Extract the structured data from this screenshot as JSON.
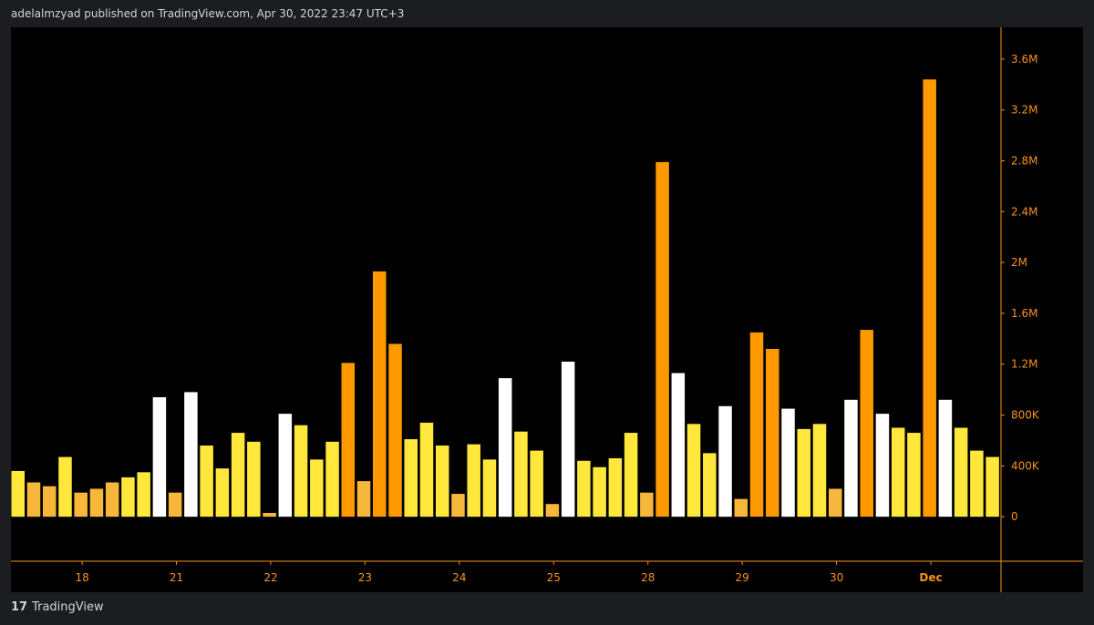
{
  "header": {
    "publish_line": "adelalmzyad published on TradingView.com, Apr 30, 2022 23:47 UTC+3"
  },
  "footer": {
    "logo_glyph": "17",
    "brand": "TradingView"
  },
  "colors": {
    "background": "#000000",
    "axis": "#f7931a",
    "tick_text": "#f7931a",
    "white_bar": "#ffffff",
    "yellow_bar": "#ffe83b",
    "gold_bar": "#f7b73a",
    "orange_bar": "#ff9900"
  },
  "chart_data": {
    "type": "bar",
    "title": "",
    "xlabel": "",
    "ylabel": "",
    "ylim": [
      -350000,
      3850000
    ],
    "y_ticks": [
      0,
      400000,
      800000,
      1200000,
      1600000,
      2000000,
      2400000,
      2800000,
      3200000,
      3600000
    ],
    "y_tick_labels": [
      "0",
      "400K",
      "800K",
      "1.2M",
      "1.6M",
      "2M",
      "2.4M",
      "2.8M",
      "3.2M",
      "3.6M"
    ],
    "x_tick_labels": [
      {
        "label": "18",
        "bar_index": 4.5
      },
      {
        "label": "21",
        "bar_index": 10.5
      },
      {
        "label": "22",
        "bar_index": 16.5
      },
      {
        "label": "23",
        "bar_index": 22.5
      },
      {
        "label": "24",
        "bar_index": 28.5
      },
      {
        "label": "25",
        "bar_index": 34.5
      },
      {
        "label": "28",
        "bar_index": 40.5
      },
      {
        "label": "29",
        "bar_index": 46.5
      },
      {
        "label": "30",
        "bar_index": 52.5
      },
      {
        "label": "Dec",
        "bar_index": 58.5,
        "bold": true
      }
    ],
    "values": [
      360000,
      270000,
      240000,
      470000,
      190000,
      220000,
      270000,
      310000,
      350000,
      940000,
      190000,
      980000,
      560000,
      380000,
      660000,
      590000,
      30000,
      810000,
      720000,
      450000,
      590000,
      1210000,
      280000,
      1930000,
      1360000,
      610000,
      740000,
      560000,
      180000,
      570000,
      450000,
      1090000,
      670000,
      520000,
      100000,
      1220000,
      440000,
      390000,
      460000,
      660000,
      190000,
      2790000,
      1130000,
      730000,
      500000,
      870000,
      140000,
      1450000,
      1320000,
      850000,
      690000,
      730000,
      220000,
      920000,
      1470000,
      810000,
      700000,
      660000,
      3440000,
      920000,
      700000,
      520000,
      470000
    ],
    "bar_colors": [
      "yellow",
      "gold",
      "gold",
      "yellow",
      "gold",
      "gold",
      "gold",
      "yellow",
      "yellow",
      "white",
      "gold",
      "white",
      "yellow",
      "yellow",
      "yellow",
      "yellow",
      "gold",
      "white",
      "yellow",
      "yellow",
      "yellow",
      "orange",
      "gold",
      "orange",
      "orange",
      "yellow",
      "yellow",
      "yellow",
      "gold",
      "yellow",
      "yellow",
      "white",
      "yellow",
      "yellow",
      "gold",
      "white",
      "yellow",
      "yellow",
      "yellow",
      "yellow",
      "gold",
      "orange",
      "white",
      "yellow",
      "yellow",
      "white",
      "gold",
      "orange",
      "orange",
      "white",
      "yellow",
      "yellow",
      "gold",
      "white",
      "orange",
      "white",
      "yellow",
      "yellow",
      "orange",
      "white",
      "yellow",
      "yellow",
      "yellow"
    ],
    "grid": false,
    "legend": "none"
  }
}
